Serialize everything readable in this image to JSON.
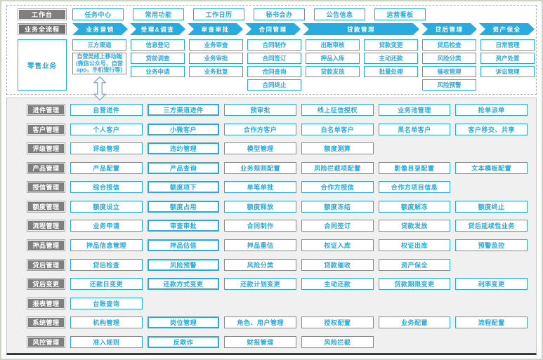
{
  "colors": {
    "accent_blue": "#29ABE2",
    "label_gray": "#7F7F7F",
    "panel_gray": "#F0F0F0",
    "connector_blue": "#8FAADC"
  },
  "workbench": {
    "label": "工作台",
    "items": [
      "任务中心",
      "常用功能",
      "工作日历",
      "秘书会办",
      "公告信息",
      "运营看板"
    ]
  },
  "process": {
    "label": "业务全流程",
    "arrows": [
      {
        "label": "业务营销",
        "span": 1
      },
      {
        "label": "受理&调查",
        "span": 1
      },
      {
        "label": "审查审批",
        "span": 1
      },
      {
        "label": "合同管理",
        "span": 1
      },
      {
        "label": "贷款管理",
        "span": 2
      },
      {
        "label": "贷后管理",
        "span": 1
      },
      {
        "label": "资产保全",
        "span": 1
      }
    ]
  },
  "retail": {
    "label": "零售业务",
    "connector_icon": "up-down-arrow-icon",
    "columns": [
      [
        "三方渠道",
        "自营类线上移动端(微信公众号、自营app，手机银行等)"
      ],
      [
        "信息登记",
        "贷前调查",
        "业务申请"
      ],
      [
        "业务审查",
        "业务审批",
        "业务批复"
      ],
      [
        "合同制作",
        "合同签订",
        "合同查询",
        "合同终止"
      ],
      [
        "出账审核",
        "押品入库",
        "贷款发放"
      ],
      [
        "贷款变更",
        "主动还款",
        "批量处理"
      ],
      [
        "贷后检查",
        "风险分类",
        "催收管理",
        "风险预警"
      ],
      [
        "日常管理",
        "资产处置",
        "诉讼管理"
      ]
    ]
  },
  "modules": [
    {
      "label": "进件管理",
      "items": [
        "自营进件",
        "三方渠道进件",
        "预审批",
        "线上征信授权",
        "业务池管理",
        "抢单派单"
      ]
    },
    {
      "label": "客户管理",
      "items": [
        "个人客户",
        "小微客户",
        "合作方客户",
        "白名单客户",
        "黑名单客户",
        "客户移交、共享"
      ]
    },
    {
      "label": "评级管理",
      "items": [
        "评级管理",
        "违约管理",
        "模型管理",
        "额度测算"
      ]
    },
    {
      "label": "产品管理",
      "items": [
        "产品配置",
        "产品查询",
        "业务规则配置",
        "风险拦截项配置",
        "影像目录配置",
        "文本模板配置"
      ]
    },
    {
      "label": "授信管理",
      "items": [
        "综合授信",
        "额度项下",
        "单笔单批",
        "合作方授信",
        "合作方项目信息"
      ]
    },
    {
      "label": "额度管理",
      "items": [
        "额度设立",
        "额度占用",
        "额度释放",
        "额度冻结",
        "额度解冻",
        "额度终止"
      ]
    },
    {
      "label": "流程管理",
      "items": [
        "业务申请",
        "审查审批",
        "合同制作",
        "合同签订",
        "贷款发放",
        "贷后延续性业务"
      ]
    },
    {
      "label": "押品管理",
      "items": [
        "押品信息管理",
        "押品估值",
        "押品重估",
        "权证入库",
        "权证出库",
        "预警监控"
      ]
    },
    {
      "label": "贷后管理",
      "items": [
        "贷后检查",
        "风险预警",
        "风险分类",
        "贷款催收",
        "资产保全"
      ]
    },
    {
      "label": "贷后变更",
      "items": [
        "还款日变更",
        "还款方式变更",
        "还款计划变更",
        "主动还款",
        "贷款期限变更",
        "利率变更"
      ]
    },
    {
      "label": "报表管理",
      "items": [
        "台账查询"
      ]
    },
    {
      "label": "系统管理",
      "items": [
        "机构管理",
        "岗位管理",
        "角色、用户管理",
        "授权配置",
        "业务配置",
        "流程配置"
      ]
    },
    {
      "label": "风控管理",
      "items": [
        "准入规则",
        "反欺诈",
        "财报管理",
        "风险拦截"
      ]
    }
  ]
}
